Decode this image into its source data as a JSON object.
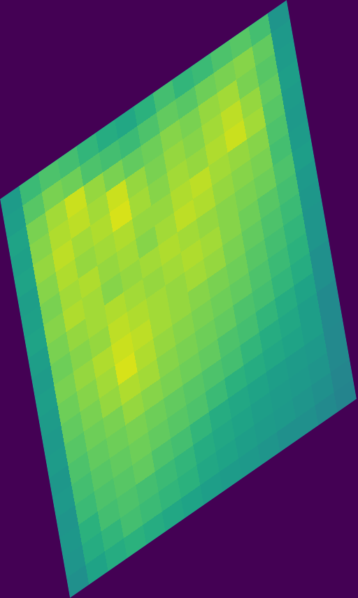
{
  "chart_data": {
    "type": "heatmap",
    "tick_labels": false,
    "color_range": [
      0,
      1
    ],
    "cells": [
      [
        0.55,
        0.68,
        0.72,
        0.7,
        0.66,
        0.62,
        0.6,
        0.64,
        0.7,
        0.66,
        0.68,
        0.72,
        0.74,
        0.7,
        0.52
      ],
      [
        0.56,
        0.74,
        0.8,
        0.78,
        0.72,
        0.7,
        0.68,
        0.72,
        0.76,
        0.74,
        0.78,
        0.8,
        0.82,
        0.76,
        0.54
      ],
      [
        0.58,
        0.8,
        0.86,
        0.92,
        0.84,
        0.8,
        0.76,
        0.78,
        0.82,
        0.8,
        0.84,
        0.86,
        0.8,
        0.74,
        0.55
      ],
      [
        0.57,
        0.82,
        0.88,
        0.9,
        0.86,
        0.92,
        0.84,
        0.8,
        0.84,
        0.82,
        0.86,
        0.9,
        0.84,
        0.76,
        0.56
      ],
      [
        0.58,
        0.84,
        0.9,
        0.86,
        0.88,
        0.94,
        0.86,
        0.82,
        0.86,
        0.84,
        0.88,
        0.92,
        0.86,
        0.74,
        0.55
      ],
      [
        0.56,
        0.82,
        0.88,
        0.84,
        0.86,
        0.88,
        0.84,
        0.84,
        0.88,
        0.9,
        0.86,
        0.84,
        0.82,
        0.72,
        0.54
      ],
      [
        0.57,
        0.8,
        0.86,
        0.88,
        0.84,
        0.86,
        0.82,
        0.86,
        0.9,
        0.88,
        0.84,
        0.82,
        0.8,
        0.7,
        0.55
      ],
      [
        0.58,
        0.82,
        0.88,
        0.86,
        0.82,
        0.84,
        0.86,
        0.88,
        0.86,
        0.84,
        0.82,
        0.8,
        0.78,
        0.72,
        0.56
      ],
      [
        0.56,
        0.8,
        0.84,
        0.86,
        0.88,
        0.86,
        0.84,
        0.86,
        0.88,
        0.86,
        0.82,
        0.78,
        0.74,
        0.7,
        0.54
      ],
      [
        0.55,
        0.78,
        0.82,
        0.84,
        0.9,
        0.88,
        0.86,
        0.84,
        0.86,
        0.84,
        0.8,
        0.76,
        0.72,
        0.68,
        0.53
      ],
      [
        0.56,
        0.8,
        0.84,
        0.88,
        0.92,
        0.9,
        0.86,
        0.84,
        0.82,
        0.8,
        0.78,
        0.74,
        0.7,
        0.66,
        0.52
      ],
      [
        0.55,
        0.78,
        0.82,
        0.86,
        0.94,
        0.88,
        0.84,
        0.82,
        0.8,
        0.78,
        0.76,
        0.72,
        0.68,
        0.64,
        0.52
      ],
      [
        0.54,
        0.76,
        0.8,
        0.84,
        0.88,
        0.86,
        0.82,
        0.8,
        0.78,
        0.76,
        0.72,
        0.7,
        0.66,
        0.62,
        0.5
      ],
      [
        0.55,
        0.74,
        0.78,
        0.8,
        0.84,
        0.82,
        0.8,
        0.78,
        0.76,
        0.72,
        0.7,
        0.66,
        0.62,
        0.58,
        0.5
      ],
      [
        0.53,
        0.72,
        0.76,
        0.78,
        0.8,
        0.78,
        0.76,
        0.74,
        0.72,
        0.7,
        0.66,
        0.62,
        0.6,
        0.56,
        0.48
      ],
      [
        0.54,
        0.7,
        0.74,
        0.76,
        0.78,
        0.76,
        0.74,
        0.72,
        0.68,
        0.64,
        0.62,
        0.6,
        0.58,
        0.56,
        0.48
      ],
      [
        0.52,
        0.68,
        0.72,
        0.74,
        0.76,
        0.72,
        0.7,
        0.66,
        0.62,
        0.6,
        0.58,
        0.56,
        0.55,
        0.54,
        0.47
      ],
      [
        0.53,
        0.64,
        0.7,
        0.72,
        0.7,
        0.68,
        0.66,
        0.62,
        0.6,
        0.58,
        0.56,
        0.55,
        0.54,
        0.52,
        0.47
      ],
      [
        0.52,
        0.62,
        0.66,
        0.7,
        0.68,
        0.66,
        0.64,
        0.6,
        0.58,
        0.56,
        0.55,
        0.54,
        0.52,
        0.5,
        0.46
      ],
      [
        0.5,
        0.58,
        0.62,
        0.64,
        0.62,
        0.6,
        0.58,
        0.56,
        0.55,
        0.54,
        0.52,
        0.5,
        0.5,
        0.48,
        0.45
      ]
    ]
  }
}
